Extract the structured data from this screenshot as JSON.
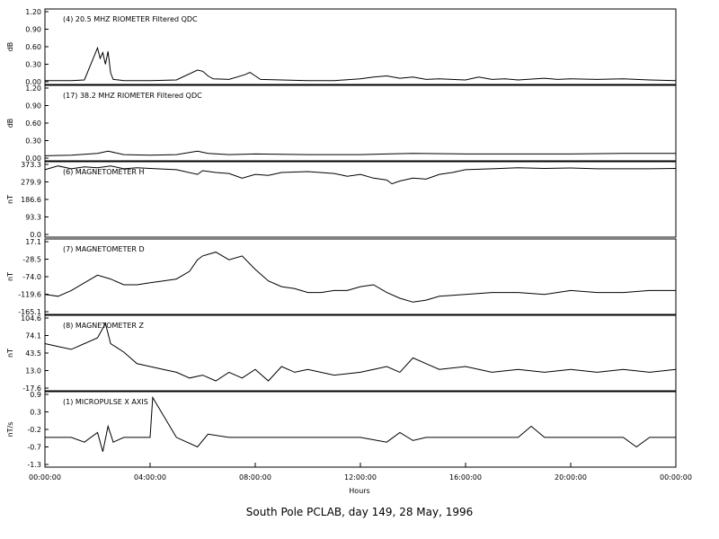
{
  "chart_data": {
    "type": "line",
    "title": "South Pole PCLAB, day 149, 28 May, 1996",
    "xlabel": "Hours",
    "x_tick_labels": [
      "00:00:00",
      "04:00:00",
      "08:00:00",
      "12:00:00",
      "16:00:00",
      "20:00:00",
      "00:00:00"
    ],
    "xlim_hours": [
      0,
      24
    ],
    "panels": [
      {
        "label": "(4)  20.5 MHZ RIOMETER  Filtered QDC",
        "ylabel": "dB",
        "yticks": [
          "1.20",
          "0.90",
          "0.60",
          "0.30",
          "0.00"
        ],
        "ylim": [
          0.0,
          1.2
        ],
        "series": [
          {
            "x": [
              0,
              0.5,
              1,
              1.5,
              2.0,
              2.1,
              2.2,
              2.3,
              2.4,
              2.5,
              2.6,
              2.8,
              3,
              4,
              5,
              5.8,
              6.0,
              6.2,
              6.4,
              7,
              7.6,
              7.8,
              8.0,
              8.2,
              9,
              10,
              11,
              12,
              12.5,
              13,
              13.5,
              14,
              14.5,
              15,
              16,
              16.5,
              17,
              17.5,
              18,
              19,
              19.5,
              20,
              21,
              22,
              23,
              24
            ],
            "y": [
              0.02,
              0.02,
              0.02,
              0.03,
              0.58,
              0.4,
              0.5,
              0.3,
              0.52,
              0.15,
              0.04,
              0.03,
              0.02,
              0.02,
              0.03,
              0.2,
              0.18,
              0.1,
              0.05,
              0.04,
              0.12,
              0.16,
              0.1,
              0.04,
              0.03,
              0.02,
              0.02,
              0.05,
              0.08,
              0.1,
              0.06,
              0.08,
              0.04,
              0.05,
              0.03,
              0.08,
              0.04,
              0.05,
              0.03,
              0.06,
              0.04,
              0.05,
              0.04,
              0.05,
              0.03,
              0.02
            ]
          }
        ]
      },
      {
        "label": "(17)  38.2 MHZ RIOMETER  Filtered QDC",
        "ylabel": "dB",
        "yticks": [
          "1.20",
          "0.90",
          "0.60",
          "0.30",
          "0.00"
        ],
        "ylim": [
          0.0,
          1.2
        ],
        "series": [
          {
            "x": [
              0,
              1,
              2,
              2.4,
              3,
              4,
              5,
              5.8,
              6.2,
              7,
              8,
              10,
              12,
              13,
              14,
              16,
              18,
              20,
              22,
              24
            ],
            "y": [
              0.04,
              0.05,
              0.08,
              0.12,
              0.06,
              0.05,
              0.06,
              0.12,
              0.08,
              0.06,
              0.07,
              0.06,
              0.06,
              0.07,
              0.08,
              0.07,
              0.07,
              0.07,
              0.08,
              0.08
            ]
          }
        ]
      },
      {
        "label": "(6)  MAGNETOMETER H",
        "ylabel": "nT",
        "yticks": [
          "373.3",
          "279.9",
          "186.6",
          "93.3",
          "0.0"
        ],
        "ylim": [
          0.0,
          373.3
        ],
        "series": [
          {
            "x": [
              0,
              0.5,
              1,
              1.5,
              2,
              2.5,
              3,
              3.5,
              4,
              5,
              5.8,
              6.0,
              6.5,
              7,
              7.5,
              8,
              8.5,
              9,
              10,
              11,
              11.5,
              12,
              12.5,
              13,
              13.2,
              13.5,
              14,
              14.5,
              15,
              15.5,
              16,
              17,
              18,
              19,
              20,
              21,
              22,
              23,
              24
            ],
            "y": [
              345,
              365,
              350,
              360,
              355,
              365,
              350,
              355,
              352,
              345,
              320,
              340,
              330,
              325,
              300,
              320,
              315,
              330,
              335,
              325,
              310,
              320,
              300,
              290,
              270,
              285,
              300,
              295,
              320,
              330,
              345,
              350,
              355,
              352,
              354,
              350,
              350,
              350,
              352
            ]
          }
        ]
      },
      {
        "label": "(7)  MAGNETOMETER D",
        "ylabel": "nT",
        "yticks": [
          "17.1",
          "-28.5",
          "-74.0",
          "-119.6",
          "-165.1"
        ],
        "ylim": [
          -165.1,
          17.1
        ],
        "series": [
          {
            "x": [
              0,
              0.5,
              1,
              1.5,
              2,
              2.5,
              3,
              3.5,
              4,
              4.5,
              5,
              5.5,
              5.8,
              6,
              6.5,
              7,
              7.5,
              8,
              8.5,
              9,
              9.5,
              10,
              10.5,
              11,
              11.5,
              12,
              12.5,
              13,
              13.5,
              14,
              14.5,
              15,
              16,
              17,
              18,
              19,
              20,
              21,
              22,
              23,
              24
            ],
            "y": [
              -120,
              -125,
              -110,
              -90,
              -70,
              -80,
              -95,
              -95,
              -90,
              -85,
              -80,
              -60,
              -30,
              -20,
              -10,
              -30,
              -20,
              -55,
              -85,
              -100,
              -105,
              -115,
              -115,
              -110,
              -110,
              -100,
              -95,
              -115,
              -130,
              -140,
              -135,
              -125,
              -120,
              -115,
              -115,
              -120,
              -110,
              -115,
              -115,
              -110,
              -110
            ]
          }
        ]
      },
      {
        "label": "(8)  MAGNETOMETER Z",
        "ylabel": "nT",
        "yticks": [
          "104.6",
          "74.1",
          "43.5",
          "13.0",
          "-17.6"
        ],
        "ylim": [
          -17.6,
          104.6
        ],
        "series": [
          {
            "x": [
              0,
              0.5,
              1,
              1.5,
              2,
              2.3,
              2.5,
              3,
              3.5,
              4,
              4.5,
              5,
              5.5,
              6,
              6.5,
              7,
              7.5,
              8,
              8.5,
              9,
              9.5,
              10,
              11,
              12,
              12.5,
              13,
              13.5,
              14,
              14.5,
              15,
              16,
              17,
              18,
              19,
              20,
              21,
              22,
              23,
              24
            ],
            "y": [
              60,
              55,
              50,
              60,
              70,
              95,
              60,
              45,
              25,
              20,
              15,
              10,
              0,
              5,
              -5,
              10,
              0,
              15,
              -5,
              20,
              10,
              15,
              5,
              10,
              15,
              20,
              10,
              35,
              25,
              15,
              20,
              10,
              15,
              10,
              15,
              10,
              15,
              10,
              15
            ]
          }
        ]
      },
      {
        "label": "(1)  MICROPULSE X AXIS",
        "ylabel": "nT/s",
        "yticks": [
          "0.9",
          "0.3",
          "-0.2",
          "-0.7",
          "-1.3"
        ],
        "ylim": [
          -1.3,
          0.9
        ],
        "series": [
          {
            "x": [
              0,
              1,
              1.5,
              2,
              2.2,
              2.4,
              2.6,
              3,
              4,
              4.1,
              5,
              5.8,
              6.2,
              7,
              8,
              9,
              10,
              11,
              12,
              13,
              13.5,
              14,
              14.5,
              15,
              16,
              17,
              18,
              18.5,
              19,
              20,
              22,
              22.5,
              23,
              24
            ],
            "y": [
              -0.45,
              -0.45,
              -0.6,
              -0.3,
              -0.9,
              -0.1,
              -0.6,
              -0.45,
              -0.45,
              0.8,
              -0.45,
              -0.75,
              -0.35,
              -0.45,
              -0.45,
              -0.45,
              -0.45,
              -0.45,
              -0.45,
              -0.6,
              -0.3,
              -0.55,
              -0.45,
              -0.45,
              -0.45,
              -0.45,
              -0.45,
              -0.1,
              -0.45,
              -0.45,
              -0.45,
              -0.75,
              -0.45,
              -0.45
            ]
          }
        ]
      }
    ]
  }
}
